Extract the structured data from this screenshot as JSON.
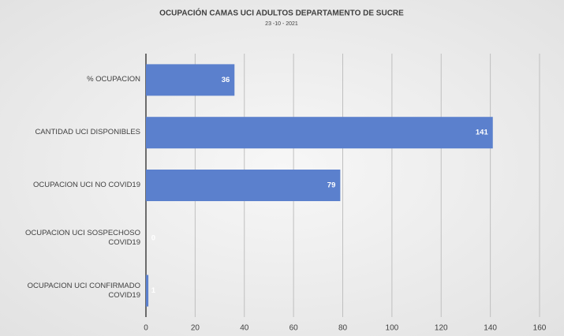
{
  "chart_data": {
    "type": "bar",
    "orientation": "horizontal",
    "title": "OCUPACIÓN CAMAS UCI ADULTOS DEPARTAMENTO DE SUCRE",
    "subtitle": "23 -10 - 2021",
    "categories": [
      "% OCUPACION",
      "CANTIDAD UCI DISPONIBLES",
      "OCUPACION UCI NO COVID19",
      "OCUPACION UCI SOSPECHOSO COVID19",
      "OCUPACION UCI CONFIRMADO COVID19"
    ],
    "values": [
      36,
      141,
      79,
      0,
      1
    ],
    "color": "#5b80cd",
    "xlim": [
      0,
      160
    ],
    "xticks": [
      0,
      20,
      40,
      60,
      80,
      100,
      120,
      140,
      160
    ],
    "grid": true
  }
}
